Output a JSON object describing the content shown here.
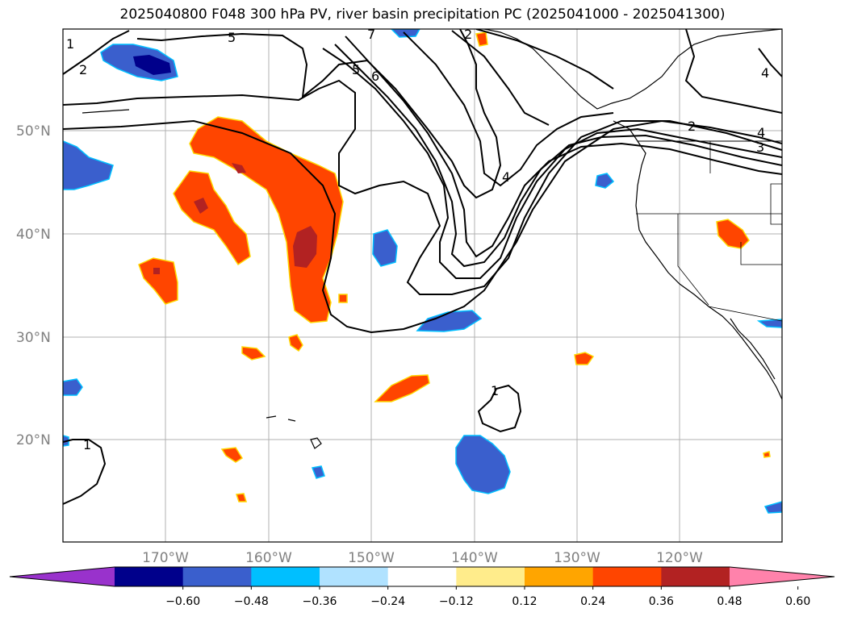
{
  "title": "2025040800 F048 300 hPa PV, river basin precipitation PC (2025041000 - 2025041300)",
  "axes": {
    "lat_labels": [
      "50°N",
      "40°N",
      "30°N",
      "20°N"
    ],
    "lon_labels": [
      "170°W",
      "160°W",
      "150°W",
      "140°W",
      "130°W",
      "120°W"
    ]
  },
  "colorbar": {
    "colors": [
      "#9932cc",
      "#00008b",
      "#3a5fcd",
      "#00bfff",
      "#b0e2ff",
      "#ffffff",
      "#ffec8b",
      "#ffa500",
      "#ff4500",
      "#b22222",
      "#ff82ab"
    ],
    "tick_labels": [
      "−0.60",
      "−0.48",
      "−0.36",
      "−0.24",
      "−0.12",
      "0.12",
      "0.24",
      "0.36",
      "0.48",
      "0.60"
    ]
  },
  "contour_labels": [
    "1",
    "2",
    "2",
    "3",
    "4",
    "4",
    "5",
    "5",
    "6",
    "7",
    "1",
    "1",
    "2",
    "4"
  ]
}
